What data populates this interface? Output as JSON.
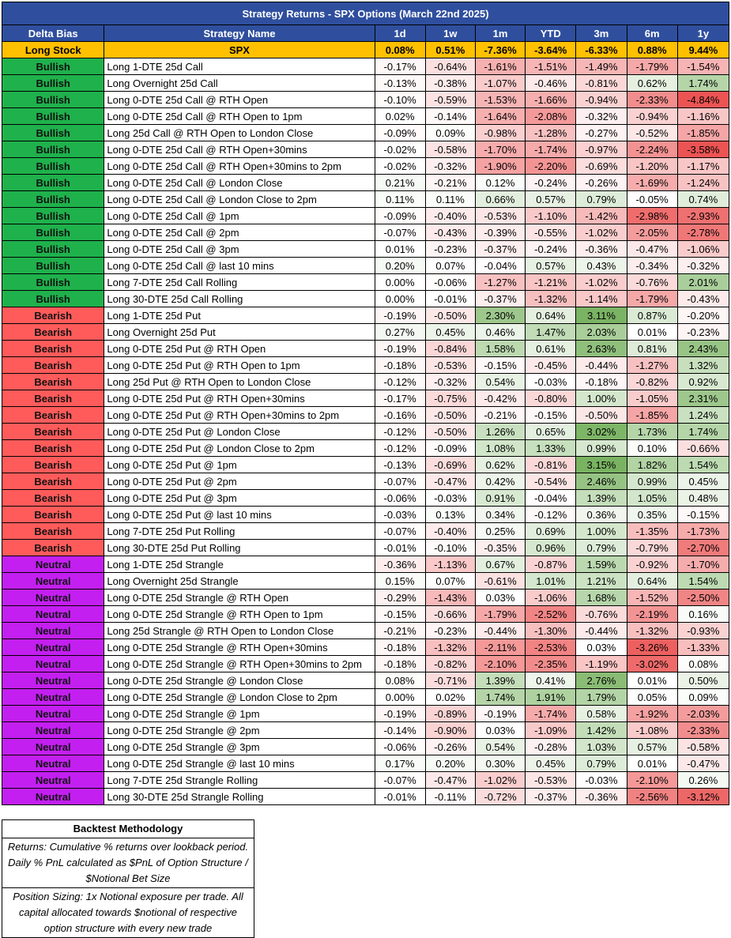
{
  "title": "Strategy Returns - SPX Options (March 22nd 2025)",
  "headers": [
    "Delta Bias",
    "Strategy Name",
    "1d",
    "1w",
    "1m",
    "YTD",
    "3m",
    "6m",
    "1y"
  ],
  "reference_row": {
    "bias": "Long Stock",
    "name": "SPX",
    "values": [
      "0.08%",
      "0.51%",
      "-7.36%",
      "-3.64%",
      "-6.33%",
      "0.88%",
      "9.44%"
    ]
  },
  "colors": {
    "bullish": "#1fb14c",
    "bearish": "#ff5b5b",
    "neutral": "#c31ff0",
    "header": "#2f4f9e",
    "reference": "#ffc000"
  },
  "rows": [
    {
      "bias": "Bullish",
      "name": "Long 1-DTE 25d Call",
      "values": [
        "-0.17%",
        "-0.64%",
        "-1.61%",
        "-1.51%",
        "-1.49%",
        "-1.79%",
        "-1.54%"
      ]
    },
    {
      "bias": "Bullish",
      "name": "Long Overnight 25d Call",
      "values": [
        "-0.13%",
        "-0.38%",
        "-1.07%",
        "-0.46%",
        "-0.81%",
        "0.62%",
        "1.74%"
      ]
    },
    {
      "bias": "Bullish",
      "name": "Long 0-DTE 25d Call @ RTH Open",
      "values": [
        "-0.10%",
        "-0.59%",
        "-1.53%",
        "-1.66%",
        "-0.94%",
        "-2.33%",
        "-4.84%"
      ]
    },
    {
      "bias": "Bullish",
      "name": "Long 0-DTE 25d Call @ RTH Open to 1pm",
      "values": [
        "0.02%",
        "-0.14%",
        "-1.64%",
        "-2.08%",
        "-0.32%",
        "-0.94%",
        "-1.16%"
      ]
    },
    {
      "bias": "Bullish",
      "name": "Long 25d Call @ RTH Open to London Close",
      "values": [
        "-0.09%",
        "0.09%",
        "-0.98%",
        "-1.28%",
        "-0.27%",
        "-0.52%",
        "-1.85%"
      ]
    },
    {
      "bias": "Bullish",
      "name": "Long 0-DTE 25d Call @ RTH Open+30mins",
      "values": [
        "-0.02%",
        "-0.58%",
        "-1.70%",
        "-1.74%",
        "-0.97%",
        "-2.24%",
        "-3.58%"
      ]
    },
    {
      "bias": "Bullish",
      "name": "Long 0-DTE 25d Call @ RTH Open+30mins to 2pm",
      "values": [
        "-0.02%",
        "-0.32%",
        "-1.90%",
        "-2.20%",
        "-0.69%",
        "-1.20%",
        "-1.17%"
      ]
    },
    {
      "bias": "Bullish",
      "name": "Long 0-DTE 25d Call @ London Close",
      "values": [
        "0.21%",
        "-0.21%",
        "0.12%",
        "-0.24%",
        "-0.26%",
        "-1.69%",
        "-1.24%"
      ]
    },
    {
      "bias": "Bullish",
      "name": "Long 0-DTE 25d Call @ London Close to 2pm",
      "values": [
        "0.11%",
        "0.11%",
        "0.66%",
        "0.57%",
        "0.79%",
        "-0.05%",
        "0.74%"
      ]
    },
    {
      "bias": "Bullish",
      "name": "Long 0-DTE 25d Call @ 1pm",
      "values": [
        "-0.09%",
        "-0.40%",
        "-0.53%",
        "-1.10%",
        "-1.42%",
        "-2.98%",
        "-2.93%"
      ]
    },
    {
      "bias": "Bullish",
      "name": "Long 0-DTE 25d Call @ 2pm",
      "values": [
        "-0.07%",
        "-0.43%",
        "-0.39%",
        "-0.55%",
        "-1.02%",
        "-2.05%",
        "-2.78%"
      ]
    },
    {
      "bias": "Bullish",
      "name": "Long 0-DTE 25d Call @ 3pm",
      "values": [
        "0.01%",
        "-0.23%",
        "-0.37%",
        "-0.24%",
        "-0.36%",
        "-0.47%",
        "-1.06%"
      ]
    },
    {
      "bias": "Bullish",
      "name": "Long 0-DTE 25d Call @ last 10 mins",
      "values": [
        "0.20%",
        "0.07%",
        "-0.04%",
        "0.57%",
        "0.43%",
        "-0.34%",
        "-0.32%"
      ]
    },
    {
      "bias": "Bullish",
      "name": "Long 7-DTE 25d Call Rolling",
      "values": [
        "0.00%",
        "-0.06%",
        "-1.27%",
        "-1.21%",
        "-1.02%",
        "-0.76%",
        "2.01%"
      ]
    },
    {
      "bias": "Bullish",
      "name": "Long 30-DTE 25d Call Rolling",
      "values": [
        "0.00%",
        "-0.01%",
        "-0.37%",
        "-1.32%",
        "-1.14%",
        "-1.79%",
        "-0.43%"
      ]
    },
    {
      "bias": "Bearish",
      "name": "Long 1-DTE 25d Put",
      "values": [
        "-0.19%",
        "-0.50%",
        "2.30%",
        "0.64%",
        "3.11%",
        "0.87%",
        "-0.20%"
      ]
    },
    {
      "bias": "Bearish",
      "name": "Long Overnight 25d Put",
      "values": [
        "0.27%",
        "0.45%",
        "0.46%",
        "1.47%",
        "2.03%",
        "0.01%",
        "-0.23%"
      ]
    },
    {
      "bias": "Bearish",
      "name": "Long 0-DTE 25d Put @ RTH Open",
      "values": [
        "-0.19%",
        "-0.84%",
        "1.58%",
        "0.61%",
        "2.63%",
        "0.81%",
        "2.43%"
      ]
    },
    {
      "bias": "Bearish",
      "name": "Long 0-DTE 25d Put @ RTH Open to 1pm",
      "values": [
        "-0.18%",
        "-0.53%",
        "-0.15%",
        "-0.45%",
        "-0.44%",
        "-1.27%",
        "1.32%"
      ]
    },
    {
      "bias": "Bearish",
      "name": "Long 25d Put @ RTH Open to London Close",
      "values": [
        "-0.12%",
        "-0.32%",
        "0.54%",
        "-0.03%",
        "-0.18%",
        "-0.82%",
        "0.92%"
      ]
    },
    {
      "bias": "Bearish",
      "name": "Long 0-DTE 25d Put @ RTH Open+30mins",
      "values": [
        "-0.17%",
        "-0.75%",
        "-0.42%",
        "-0.80%",
        "1.00%",
        "-1.05%",
        "2.31%"
      ]
    },
    {
      "bias": "Bearish",
      "name": "Long 0-DTE 25d Put @ RTH Open+30mins to 2pm",
      "values": [
        "-0.16%",
        "-0.50%",
        "-0.21%",
        "-0.15%",
        "-0.50%",
        "-1.85%",
        "1.24%"
      ]
    },
    {
      "bias": "Bearish",
      "name": "Long 0-DTE 25d Put @ London Close",
      "values": [
        "-0.12%",
        "-0.50%",
        "1.26%",
        "0.65%",
        "3.02%",
        "1.73%",
        "1.74%"
      ]
    },
    {
      "bias": "Bearish",
      "name": "Long 0-DTE 25d Put @ London Close to 2pm",
      "values": [
        "-0.12%",
        "-0.09%",
        "1.08%",
        "1.33%",
        "0.99%",
        "0.10%",
        "-0.66%"
      ]
    },
    {
      "bias": "Bearish",
      "name": "Long 0-DTE 25d Put @ 1pm",
      "values": [
        "-0.13%",
        "-0.69%",
        "0.62%",
        "-0.81%",
        "3.15%",
        "1.82%",
        "1.54%"
      ]
    },
    {
      "bias": "Bearish",
      "name": "Long 0-DTE 25d Put @ 2pm",
      "values": [
        "-0.07%",
        "-0.47%",
        "0.42%",
        "-0.54%",
        "2.46%",
        "0.99%",
        "0.45%"
      ]
    },
    {
      "bias": "Bearish",
      "name": "Long 0-DTE 25d Put @ 3pm",
      "values": [
        "-0.06%",
        "-0.03%",
        "0.91%",
        "-0.04%",
        "1.39%",
        "1.05%",
        "0.48%"
      ]
    },
    {
      "bias": "Bearish",
      "name": "Long 0-DTE 25d Put @ last 10 mins",
      "values": [
        "-0.03%",
        "0.13%",
        "0.34%",
        "-0.12%",
        "0.36%",
        "0.35%",
        "-0.15%"
      ]
    },
    {
      "bias": "Bearish",
      "name": "Long 7-DTE 25d Put Rolling",
      "values": [
        "-0.07%",
        "-0.40%",
        "0.25%",
        "0.69%",
        "1.00%",
        "-1.35%",
        "-1.73%"
      ]
    },
    {
      "bias": "Bearish",
      "name": "Long 30-DTE 25d Put Rolling",
      "values": [
        "-0.01%",
        "-0.10%",
        "-0.35%",
        "0.96%",
        "0.79%",
        "-0.79%",
        "-2.70%"
      ]
    },
    {
      "bias": "Neutral",
      "name": "Long 1-DTE 25d Strangle",
      "values": [
        "-0.36%",
        "-1.13%",
        "0.67%",
        "-0.87%",
        "1.59%",
        "-0.92%",
        "-1.70%"
      ]
    },
    {
      "bias": "Neutral",
      "name": "Long Overnight 25d Strangle",
      "values": [
        "0.15%",
        "0.07%",
        "-0.61%",
        "1.01%",
        "1.21%",
        "0.64%",
        "1.54%"
      ]
    },
    {
      "bias": "Neutral",
      "name": "Long 0-DTE 25d Strangle @ RTH Open",
      "values": [
        "-0.29%",
        "-1.43%",
        "0.03%",
        "-1.06%",
        "1.68%",
        "-1.52%",
        "-2.50%"
      ]
    },
    {
      "bias": "Neutral",
      "name": "Long 0-DTE 25d Strangle @ RTH Open to 1pm",
      "values": [
        "-0.15%",
        "-0.66%",
        "-1.79%",
        "-2.52%",
        "-0.76%",
        "-2.19%",
        "0.16%"
      ]
    },
    {
      "bias": "Neutral",
      "name": "Long 25d Strangle @ RTH Open to London Close",
      "values": [
        "-0.21%",
        "-0.23%",
        "-0.44%",
        "-1.30%",
        "-0.44%",
        "-1.32%",
        "-0.93%"
      ]
    },
    {
      "bias": "Neutral",
      "name": "Long 0-DTE 25d Strangle @ RTH Open+30mins",
      "values": [
        "-0.18%",
        "-1.32%",
        "-2.11%",
        "-2.53%",
        "0.03%",
        "-3.26%",
        "-1.33%"
      ]
    },
    {
      "bias": "Neutral",
      "name": "Long 0-DTE 25d Strangle @ RTH Open+30mins to 2pm",
      "values": [
        "-0.18%",
        "-0.82%",
        "-2.10%",
        "-2.35%",
        "-1.19%",
        "-3.02%",
        "0.08%"
      ]
    },
    {
      "bias": "Neutral",
      "name": "Long 0-DTE 25d Strangle @ London Close",
      "values": [
        "0.08%",
        "-0.71%",
        "1.39%",
        "0.41%",
        "2.76%",
        "0.01%",
        "0.50%"
      ]
    },
    {
      "bias": "Neutral",
      "name": "Long 0-DTE 25d Strangle @ London Close to 2pm",
      "values": [
        "0.00%",
        "0.02%",
        "1.74%",
        "1.91%",
        "1.79%",
        "0.05%",
        "0.09%"
      ]
    },
    {
      "bias": "Neutral",
      "name": "Long 0-DTE 25d Strangle @ 1pm",
      "values": [
        "-0.19%",
        "-0.89%",
        "-0.19%",
        "-1.74%",
        "0.58%",
        "-1.92%",
        "-2.03%"
      ]
    },
    {
      "bias": "Neutral",
      "name": "Long 0-DTE 25d Strangle @ 2pm",
      "values": [
        "-0.14%",
        "-0.90%",
        "0.03%",
        "-1.09%",
        "1.42%",
        "-1.08%",
        "-2.33%"
      ]
    },
    {
      "bias": "Neutral",
      "name": "Long 0-DTE 25d Strangle @ 3pm",
      "values": [
        "-0.06%",
        "-0.26%",
        "0.54%",
        "-0.28%",
        "1.03%",
        "0.57%",
        "-0.58%"
      ]
    },
    {
      "bias": "Neutral",
      "name": "Long 0-DTE 25d Strangle @ last 10 mins",
      "values": [
        "0.17%",
        "0.20%",
        "0.30%",
        "0.45%",
        "0.79%",
        "0.01%",
        "-0.47%"
      ]
    },
    {
      "bias": "Neutral",
      "name": "Long 7-DTE 25d Strangle Rolling",
      "values": [
        "-0.07%",
        "-0.47%",
        "-1.02%",
        "-0.53%",
        "-0.03%",
        "-2.10%",
        "0.26%"
      ]
    },
    {
      "bias": "Neutral",
      "name": "Long 30-DTE 25d Strangle Rolling",
      "values": [
        "-0.01%",
        "-0.11%",
        "-0.72%",
        "-0.37%",
        "-0.36%",
        "-2.56%",
        "-3.12%"
      ]
    }
  ],
  "methodology": {
    "title": "Backtest Methodology",
    "returns": "Returns: Cumulative % returns over lookback period. Daily % PnL calculated as $PnL of Option Structure / $Notional Bet Size",
    "sizing": "Position Sizing: 1x Notional exposure per trade. All capital allocated towards $notional of respective option structure with every new trade"
  }
}
